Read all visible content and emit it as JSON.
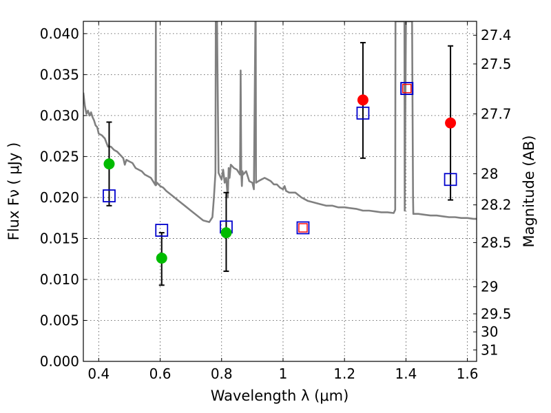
{
  "chart_data": {
    "type": "scatter",
    "xlabel": "Wavelength  λ (μm)",
    "ylabel": "Flux  Fν  ( μJy )",
    "y2label": "Magnitude (AB)",
    "xlim": [
      0.35,
      1.63
    ],
    "ylim": [
      0.0,
      0.0415
    ],
    "grid": true,
    "x_ticks": [
      0.4,
      0.6,
      0.8,
      1.0,
      1.2,
      1.4,
      1.6
    ],
    "x_tick_labels": [
      "0.4",
      "0.6",
      "0.8",
      "1",
      "1.2",
      "1.4",
      "1.6"
    ],
    "y_ticks": [
      0.0,
      0.005,
      0.01,
      0.015,
      0.02,
      0.025,
      0.03,
      0.035,
      0.04
    ],
    "y_tick_labels": [
      "0.000",
      "0.005",
      "0.010",
      "0.015",
      "0.020",
      "0.025",
      "0.030",
      "0.035",
      "0.040"
    ],
    "y2_ticks": [
      {
        "label": "27.4",
        "flux": 0.0398
      },
      {
        "label": "27.5",
        "flux": 0.0363
      },
      {
        "label": "27.7",
        "flux": 0.0302
      },
      {
        "label": "28",
        "flux": 0.0229
      },
      {
        "label": "28.2",
        "flux": 0.0191
      },
      {
        "label": "28.5",
        "flux": 0.0145
      },
      {
        "label": "29",
        "flux": 0.0091
      },
      {
        "label": "29.5",
        "flux": 0.0058
      },
      {
        "label": "30",
        "flux": 0.0036
      },
      {
        "label": "31",
        "flux": 0.0014
      }
    ],
    "series": [
      {
        "kind": "line",
        "color": "#808080",
        "x": [
          0.35,
          0.355,
          0.36,
          0.365,
          0.37,
          0.375,
          0.38,
          0.385,
          0.39,
          0.395,
          0.4,
          0.41,
          0.42,
          0.43,
          0.44,
          0.45,
          0.46,
          0.47,
          0.48,
          0.485,
          0.49,
          0.5,
          0.51,
          0.52,
          0.53,
          0.54,
          0.55,
          0.56,
          0.57,
          0.58,
          0.585,
          0.586,
          0.5865,
          0.59,
          0.6,
          0.61,
          0.62,
          0.64,
          0.66,
          0.68,
          0.7,
          0.72,
          0.74,
          0.76,
          0.77,
          0.775,
          0.78,
          0.781,
          0.785,
          0.79,
          0.795,
          0.8,
          0.805,
          0.81,
          0.815,
          0.82,
          0.823,
          0.826,
          0.83,
          0.835,
          0.84,
          0.85,
          0.86,
          0.862,
          0.864,
          0.866,
          0.868,
          0.87,
          0.88,
          0.89,
          0.9,
          0.905,
          0.91,
          0.911,
          0.912,
          0.92,
          0.93,
          0.94,
          0.95,
          0.96,
          0.97,
          0.98,
          0.99,
          1.0,
          1.005,
          1.01,
          1.02,
          1.04,
          1.06,
          1.08,
          1.1,
          1.12,
          1.14,
          1.16,
          1.18,
          1.2,
          1.22,
          1.24,
          1.26,
          1.28,
          1.3,
          1.32,
          1.34,
          1.36,
          1.365,
          1.366,
          1.37,
          1.375,
          1.38,
          1.385,
          1.39,
          1.395,
          1.396,
          1.4,
          1.41,
          1.42,
          1.423,
          1.424,
          1.43,
          1.44,
          1.46,
          1.48,
          1.5,
          1.52,
          1.54,
          1.56,
          1.58,
          1.6,
          1.62,
          1.63
        ],
        "y": [
          0.0328,
          0.0312,
          0.0302,
          0.0306,
          0.03,
          0.0304,
          0.0298,
          0.0294,
          0.0288,
          0.0286,
          0.0278,
          0.0276,
          0.0272,
          0.0262,
          0.0262,
          0.0258,
          0.0256,
          0.0252,
          0.0248,
          0.024,
          0.0246,
          0.0244,
          0.0242,
          0.0236,
          0.0234,
          0.0232,
          0.0228,
          0.0226,
          0.0224,
          0.0218,
          0.0215,
          0.0415,
          0.0215,
          0.0218,
          0.0214,
          0.0212,
          0.0208,
          0.0202,
          0.0196,
          0.019,
          0.0184,
          0.0178,
          0.0172,
          0.017,
          0.0176,
          0.02,
          0.023,
          0.0415,
          0.0415,
          0.023,
          0.0226,
          0.0222,
          0.0234,
          0.0218,
          0.0224,
          0.02,
          0.0236,
          0.0224,
          0.024,
          0.0238,
          0.0236,
          0.0234,
          0.0228,
          0.0355,
          0.023,
          0.0214,
          0.0232,
          0.0228,
          0.0232,
          0.022,
          0.0218,
          0.021,
          0.0415,
          0.0415,
          0.0218,
          0.022,
          0.0222,
          0.0224,
          0.0222,
          0.022,
          0.0216,
          0.0216,
          0.0212,
          0.021,
          0.0214,
          0.0208,
          0.0206,
          0.0206,
          0.02,
          0.0196,
          0.0194,
          0.0192,
          0.019,
          0.019,
          0.0188,
          0.0188,
          0.0187,
          0.0186,
          0.0184,
          0.0184,
          0.0183,
          0.0182,
          0.0182,
          0.0181,
          0.0185,
          0.0415,
          0.0415,
          0.0415,
          0.0415,
          0.0415,
          0.0415,
          0.0415,
          0.0184,
          0.0415,
          0.0415,
          0.0415,
          0.02,
          0.018,
          0.018,
          0.018,
          0.0179,
          0.0178,
          0.0178,
          0.0177,
          0.0176,
          0.0176,
          0.0175,
          0.0175,
          0.0174,
          0.0174
        ]
      },
      {
        "kind": "errorbar",
        "color": "#000000",
        "points": [
          {
            "x": 0.434,
            "low": 0.019,
            "high": 0.0292
          },
          {
            "x": 0.605,
            "low": 0.0093,
            "high": 0.0157
          },
          {
            "x": 0.815,
            "low": 0.011,
            "high": 0.0206
          },
          {
            "x": 1.26,
            "low": 0.0248,
            "high": 0.0389
          },
          {
            "x": 1.545,
            "low": 0.0197,
            "high": 0.0385
          }
        ]
      },
      {
        "kind": "marker-square-open",
        "color": "#0000cc",
        "x": [
          0.434,
          0.605,
          0.815,
          1.26,
          1.403,
          1.545
        ],
        "y": [
          0.0202,
          0.016,
          0.0164,
          0.0303,
          0.0333,
          0.0222
        ]
      },
      {
        "kind": "marker-square-open-red-inner",
        "color": "#0000cc",
        "inner": "#ff0000",
        "x": [
          1.065,
          1.403
        ],
        "y": [
          0.0163,
          0.0333
        ]
      },
      {
        "kind": "marker-circle",
        "color": "#00bb00",
        "x": [
          0.434,
          0.605,
          0.815
        ],
        "y": [
          0.0241,
          0.0126,
          0.0157
        ]
      },
      {
        "kind": "marker-circle",
        "color": "#ff0000",
        "x": [
          1.26,
          1.545
        ],
        "y": [
          0.0319,
          0.0291
        ]
      }
    ]
  }
}
